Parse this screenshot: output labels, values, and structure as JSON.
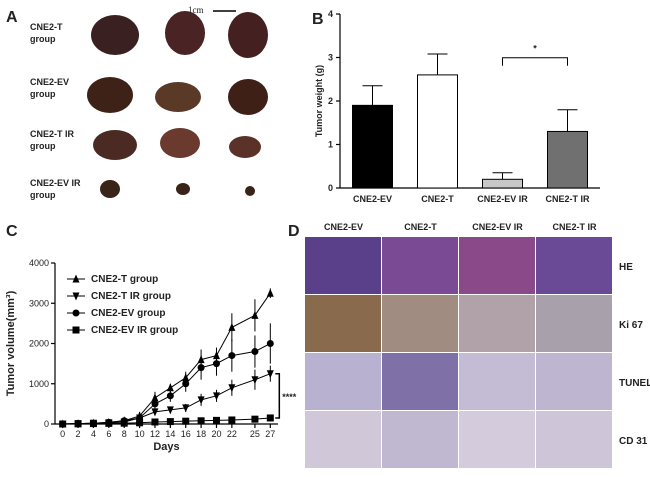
{
  "panel_a": {
    "label": "A",
    "scale_bar": "1cm",
    "rows": [
      [
        "CNE2-T",
        "group"
      ],
      [
        "CNE2-EV",
        "group"
      ],
      [
        "CNE2-T IR",
        "group"
      ],
      [
        "CNE2-EV IR",
        "group"
      ]
    ]
  },
  "chart_data": [
    {
      "type": "bar",
      "panel": "B",
      "ylabel": "Tumor weight  (g)",
      "categories": [
        "CNE2-EV",
        "CNE2-T",
        "CNE2-EV IR",
        "CNE2-T IR"
      ],
      "values": [
        1.9,
        2.6,
        0.2,
        1.3
      ],
      "errors": [
        0.45,
        0.48,
        0.15,
        0.5
      ],
      "colors": [
        "#000000",
        "#ffffff",
        "#c8c8c8",
        "#707070"
      ],
      "ylim": [
        0,
        4
      ],
      "yticks": [
        0,
        1,
        2,
        3,
        4
      ],
      "annotation": "*"
    },
    {
      "type": "line",
      "panel": "C",
      "ylabel": "Tumor volume(mm³)",
      "xlabel": "Days",
      "x": [
        0,
        2,
        4,
        6,
        8,
        10,
        12,
        14,
        16,
        18,
        20,
        22,
        25,
        27
      ],
      "xlim": [
        -1,
        28
      ],
      "xticks": [
        0,
        2,
        4,
        6,
        8,
        10,
        12,
        14,
        16,
        18,
        20,
        22,
        25,
        27
      ],
      "ylim": [
        0,
        4000
      ],
      "yticks": [
        0,
        1000,
        2000,
        3000,
        4000
      ],
      "legend": "upper left",
      "annotation": "****",
      "series": [
        {
          "name": "CNE2-T group",
          "marker": "^",
          "color": "#000000",
          "values": [
            0,
            10,
            20,
            40,
            80,
            200,
            650,
            900,
            1150,
            1600,
            1700,
            2400,
            2700,
            3250
          ],
          "errors": [
            0,
            10,
            20,
            30,
            60,
            100,
            150,
            100,
            150,
            250,
            200,
            350,
            400,
            120
          ]
        },
        {
          "name": "CNE2-T IR group",
          "marker": "v",
          "color": "#000000",
          "values": [
            0,
            10,
            20,
            30,
            50,
            150,
            300,
            350,
            400,
            600,
            700,
            900,
            1100,
            1250
          ],
          "errors": [
            0,
            10,
            15,
            20,
            40,
            60,
            80,
            80,
            100,
            150,
            150,
            200,
            250,
            200
          ]
        },
        {
          "name": "CNE2-EV group",
          "marker": "o",
          "color": "#000000",
          "values": [
            0,
            10,
            20,
            40,
            80,
            150,
            500,
            700,
            1000,
            1400,
            1500,
            1700,
            1800,
            2000
          ],
          "errors": [
            0,
            10,
            20,
            30,
            60,
            80,
            150,
            150,
            200,
            300,
            300,
            400,
            400,
            500
          ]
        },
        {
          "name": "CNE2-EV IR group",
          "marker": "s",
          "color": "#000000",
          "values": [
            0,
            5,
            10,
            15,
            20,
            30,
            50,
            60,
            70,
            80,
            90,
            100,
            120,
            150
          ],
          "errors": [
            0,
            5,
            5,
            10,
            10,
            10,
            15,
            15,
            20,
            20,
            20,
            25,
            25,
            30
          ]
        }
      ]
    }
  ],
  "panel_d": {
    "label": "D",
    "columns": [
      "CNE2-EV",
      "CNE2-T",
      "CNE2-EV IR",
      "CNE2-T IR"
    ],
    "rows": [
      "HE",
      "Ki 67",
      "TUNEL",
      "CD 31"
    ]
  }
}
